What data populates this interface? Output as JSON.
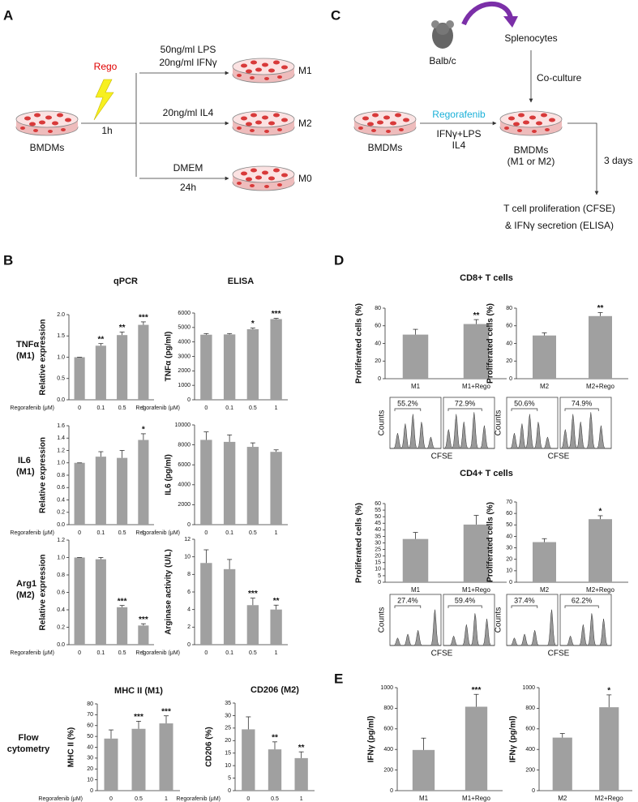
{
  "panel_letters": [
    "A",
    "B",
    "C",
    "D",
    "E"
  ],
  "panel_a": {
    "treatment": "Rego",
    "treatment_time": "1h",
    "cells": "BMDMs",
    "m1_conditions": [
      "50ng/ml LPS",
      "20ng/ml IFNγ"
    ],
    "m1": "M1",
    "m2_condition": "20ng/ml IL4",
    "m2": "M2",
    "m0_condition": "DMEM",
    "m0_time": "24h",
    "m0": "M0"
  },
  "panel_c": {
    "mouse": "Balb/c",
    "splenocytes": "Splenocytes",
    "coculture": "Co-culture",
    "drug": "Regorafenib",
    "stimuli": [
      "IFNγ+LPS",
      "IL4"
    ],
    "cells": "BMDMs",
    "macrophages": [
      "BMDMs",
      "(M1 or M2)"
    ],
    "duration": "3 days",
    "readout": [
      "T cell proliferation (CFSE)",
      "& IFNγ secretion (ELISA)"
    ]
  },
  "panel_b": {
    "qpcr_title": "qPCR",
    "elisa_title": "ELISA",
    "rows": [
      [
        "TNFα",
        "(M1)"
      ],
      [
        "IL6",
        "(M1)"
      ],
      [
        "Arg1",
        "(M2)"
      ],
      [
        "Flow",
        "cytometry"
      ]
    ]
  },
  "panel_d": {
    "cd8_title": "CD8+ T cells",
    "cd4_title": "CD4+ T cells",
    "histograms": [
      {
        "y_label": "Counts",
        "x_label": "CFSE",
        "gates": [
          "55.2%",
          "72.9%"
        ]
      },
      {
        "y_label": "Counts",
        "x_label": "CFSE",
        "gates": [
          "50.6%",
          "74.9%"
        ]
      },
      {
        "y_label": "Counts",
        "x_label": "CFSE",
        "gates": [
          "27.4%",
          "59.4%"
        ]
      },
      {
        "y_label": "Counts",
        "x_label": "CFSE",
        "gates": [
          "37.4%",
          "62.2%"
        ]
      }
    ]
  },
  "chart_data": [
    {
      "type": "bar",
      "x_label": "Regorafenib (μM)",
      "y_label": "Relative expression",
      "categories": [
        "0",
        "0.1",
        "0.5",
        "1"
      ],
      "values": [
        1.0,
        1.27,
        1.52,
        1.76
      ],
      "errors": [
        0,
        0.05,
        0.07,
        0.07
      ],
      "annotations": [
        null,
        "**",
        "**",
        "***"
      ],
      "color": "#a0a0a0",
      "ylim": [
        0,
        2
      ],
      "yticks": [
        {
          "value": 0,
          "label": "0.0"
        },
        0.5,
        {
          "value": 1,
          "label": "1.0"
        },
        1.5,
        {
          "value": 2,
          "label": "2.0"
        }
      ]
    },
    {
      "type": "bar",
      "x_label": "Regorafenib (μM)",
      "y_label": "TNFα (pg/ml)",
      "categories": [
        "0",
        "0.1",
        "0.5",
        "1"
      ],
      "values": [
        4500,
        4520,
        4880,
        5580
      ],
      "errors": [
        80,
        60,
        80,
        50
      ],
      "annotations": [
        null,
        null,
        "*",
        "***"
      ],
      "color": "#a0a0a0",
      "ylim": [
        0,
        6000
      ],
      "yticks": [
        0,
        1000,
        2000,
        3000,
        4000,
        5000,
        6000
      ]
    },
    {
      "type": "bar",
      "x_label": "Regorafenib (μM)",
      "y_label": "Relative expression",
      "categories": [
        "0",
        "0.1",
        "0.5",
        "1"
      ],
      "values": [
        1.0,
        1.1,
        1.08,
        1.37
      ],
      "errors": [
        0,
        0.08,
        0.12,
        0.1
      ],
      "annotations": [
        null,
        null,
        null,
        "*"
      ],
      "color": "#a0a0a0",
      "ylim": [
        0,
        1.6
      ],
      "yticks": [
        {
          "value": 0,
          "label": "0.0"
        },
        0.2,
        0.4,
        0.6,
        0.8,
        {
          "value": 1,
          "label": "1.0"
        },
        1.2,
        1.4,
        1.6
      ]
    },
    {
      "type": "bar",
      "x_label": "Regorafenib (μM)",
      "y_label": "IL6 (pg/ml)",
      "categories": [
        "0",
        "0.1",
        "0.5",
        "1"
      ],
      "values": [
        8500,
        8300,
        7800,
        7300
      ],
      "errors": [
        800,
        700,
        400,
        200
      ],
      "annotations": [
        null,
        null,
        null,
        null
      ],
      "color": "#a0a0a0",
      "ylim": [
        0,
        10000
      ],
      "yticks": [
        0,
        2000,
        4000,
        6000,
        8000,
        10000
      ]
    },
    {
      "type": "bar",
      "x_label": "Regorafenib (μM)",
      "y_label": "Relative expression",
      "categories": [
        "0",
        "0.1",
        "0.5",
        "1"
      ],
      "values": [
        1.0,
        0.98,
        0.43,
        0.22
      ],
      "errors": [
        0,
        0.02,
        0.02,
        0.02
      ],
      "annotations": [
        null,
        null,
        "***",
        "***"
      ],
      "color": "#a0a0a0",
      "ylim": [
        0,
        1.2
      ],
      "yticks": [
        {
          "value": 0,
          "label": "0.0"
        },
        0.2,
        0.4,
        0.6,
        0.8,
        {
          "value": 1,
          "label": "1.0"
        },
        1.2
      ]
    },
    {
      "type": "bar",
      "x_label": "Regorafenib (μM)",
      "y_label": "Arginase activity (U/L)",
      "categories": [
        "0",
        "0.1",
        "0.5",
        "1"
      ],
      "values": [
        9.3,
        8.6,
        4.5,
        4.0
      ],
      "errors": [
        1.5,
        1.1,
        0.8,
        0.5
      ],
      "annotations": [
        null,
        null,
        "***",
        "**"
      ],
      "color": "#a0a0a0",
      "ylim": [
        0,
        12
      ],
      "yticks": [
        0,
        2,
        4,
        6,
        8,
        10,
        12
      ]
    },
    {
      "type": "bar",
      "title": "MHC II (M1)",
      "x_label": "Regorafenib (μM)",
      "y_label": "MHC II (%)",
      "categories": [
        "0",
        "0.5",
        "1"
      ],
      "values": [
        48,
        57,
        62
      ],
      "errors": [
        8,
        7,
        7
      ],
      "annotations": [
        null,
        "***",
        "***"
      ],
      "color": "#a0a0a0",
      "ylim": [
        0,
        80
      ],
      "yticks": [
        0,
        10,
        20,
        30,
        40,
        50,
        60,
        70,
        80
      ]
    },
    {
      "type": "bar",
      "title": "CD206 (M2)",
      "x_label": "Regorafenib (μM)",
      "y_label": "CD206 (%)",
      "categories": [
        "0",
        "0.5",
        "1"
      ],
      "values": [
        24.5,
        16.5,
        13
      ],
      "errors": [
        5,
        3,
        2.5
      ],
      "annotations": [
        null,
        "**",
        "**"
      ],
      "color": "#a0a0a0",
      "ylim": [
        0,
        35
      ],
      "yticks": [
        0,
        5,
        10,
        15,
        20,
        25,
        30,
        35
      ]
    },
    {
      "type": "bar",
      "y_label": "Proliferated cells (%)",
      "categories": [
        "M1",
        "M1+Rego"
      ],
      "values": [
        50,
        62
      ],
      "errors": [
        6,
        5
      ],
      "annotations": [
        null,
        "**"
      ],
      "color": "#a0a0a0",
      "ylim": [
        0,
        80
      ],
      "yticks": [
        0,
        20,
        40,
        60,
        80
      ]
    },
    {
      "type": "bar",
      "y_label": "Proliferated cells (%)",
      "categories": [
        "M2",
        "M2+Rego"
      ],
      "values": [
        49,
        71
      ],
      "errors": [
        3,
        4
      ],
      "annotations": [
        null,
        "**"
      ],
      "color": "#a0a0a0",
      "ylim": [
        0,
        80
      ],
      "yticks": [
        0,
        20,
        40,
        60,
        80
      ]
    },
    {
      "type": "bar",
      "y_label": "Proliferated cells (%)",
      "categories": [
        "M1",
        "M1+Rego"
      ],
      "values": [
        33,
        44
      ],
      "errors": [
        5,
        7
      ],
      "annotations": [
        null,
        null
      ],
      "color": "#a0a0a0",
      "ylim": [
        0,
        60
      ],
      "yticks": [
        0,
        5,
        10,
        15,
        20,
        25,
        30,
        35,
        40,
        45,
        50,
        55,
        60
      ]
    },
    {
      "type": "bar",
      "y_label": "Proliferated cells (%)",
      "categories": [
        "M2",
        "M2+Rego"
      ],
      "values": [
        35,
        55
      ],
      "errors": [
        3,
        3
      ],
      "annotations": [
        null,
        "*"
      ],
      "color": "#a0a0a0",
      "ylim": [
        0,
        70
      ],
      "yticks": [
        0,
        10,
        20,
        30,
        40,
        50,
        60,
        70
      ]
    },
    {
      "type": "bar",
      "y_label": "IFNγ (pg/ml)",
      "categories": [
        "M1",
        "M1+Rego"
      ],
      "values": [
        395,
        815
      ],
      "errors": [
        115,
        120
      ],
      "annotations": [
        null,
        "***"
      ],
      "color": "#a0a0a0",
      "ylim": [
        0,
        1000
      ],
      "yticks": [
        0,
        200,
        400,
        600,
        800,
        1000
      ]
    },
    {
      "type": "bar",
      "y_label": "IFNγ (pg/ml)",
      "categories": [
        "M2",
        "M2+Rego"
      ],
      "values": [
        515,
        810
      ],
      "errors": [
        40,
        120
      ],
      "annotations": [
        null,
        "*"
      ],
      "color": "#a0a0a0",
      "ylim": [
        0,
        1000
      ],
      "yticks": [
        0,
        200,
        400,
        600,
        800,
        1000
      ]
    }
  ]
}
